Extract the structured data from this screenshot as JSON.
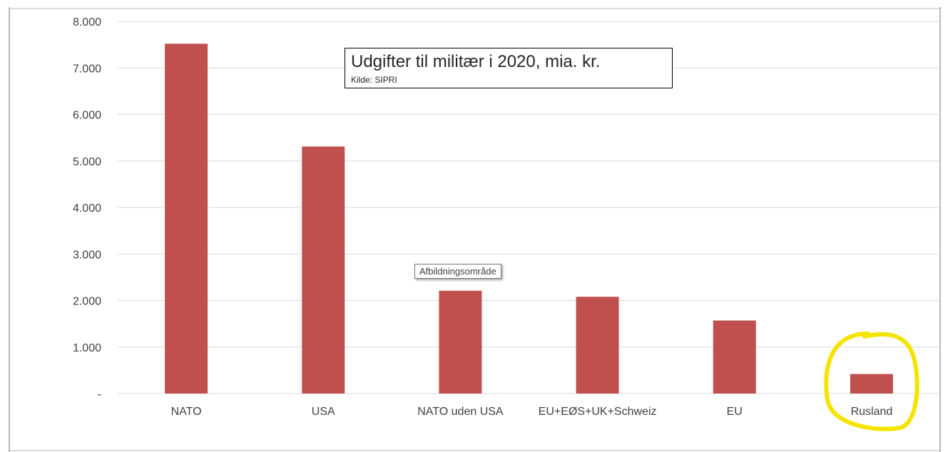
{
  "chart_data": {
    "type": "bar",
    "title": "Udgifter til militær i 2020, mia. kr.",
    "subtitle": "Kilde: SIPRI",
    "categories": [
      "NATO",
      "USA",
      "NATO uden USA",
      "EU+EØS+UK+Schweiz",
      "EU",
      "Rusland"
    ],
    "values": [
      7520,
      5310,
      2210,
      2080,
      1570,
      420
    ],
    "ylim": [
      0,
      8000
    ],
    "yticks": [
      0,
      1000,
      2000,
      3000,
      4000,
      5000,
      6000,
      7000,
      8000
    ],
    "ytick_labels": [
      "-",
      "1.000",
      "2.000",
      "3.000",
      "4.000",
      "5.000",
      "6.000",
      "7.000",
      "8.000"
    ],
    "grid": true,
    "bar_color": "#C0504D",
    "highlighted_category": "Rusland",
    "highlight_color": "#F5E400"
  },
  "tooltip": {
    "text": "Afbildningsområde"
  }
}
